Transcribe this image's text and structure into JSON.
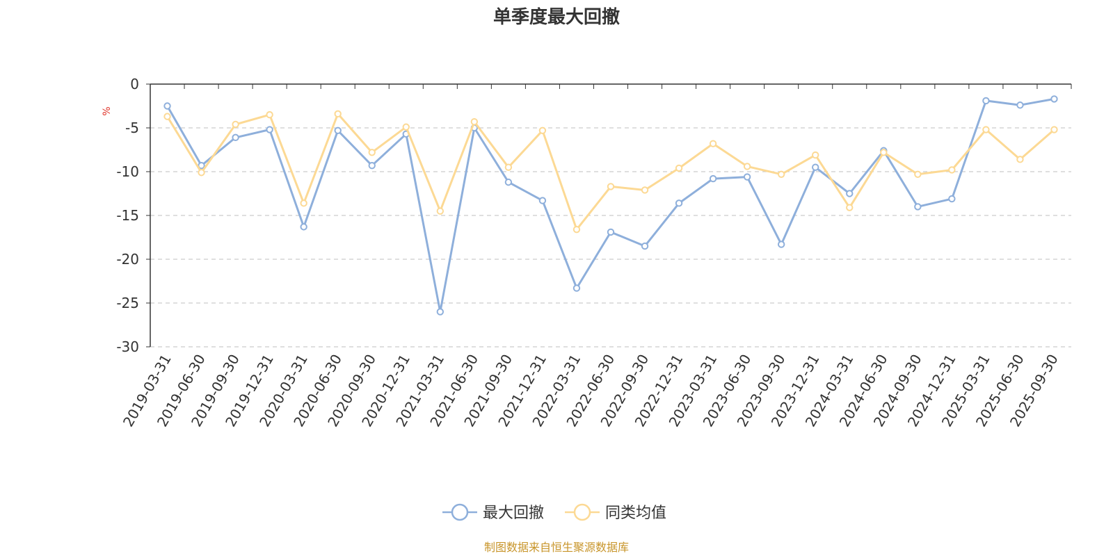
{
  "chart_data": {
    "type": "line",
    "title": "单季度最大回撤",
    "ylabel": "%",
    "ylim": [
      -30,
      0
    ],
    "yticks": [
      0,
      -5,
      -10,
      -15,
      -20,
      -25,
      -30
    ],
    "grid": true,
    "legend_position": "bottom-center",
    "categories": [
      "2019-03-31",
      "2019-06-30",
      "2019-09-30",
      "2019-12-31",
      "2020-03-31",
      "2020-06-30",
      "2020-09-30",
      "2020-12-31",
      "2021-03-31",
      "2021-06-30",
      "2021-09-30",
      "2021-12-31",
      "2022-03-31",
      "2022-06-30",
      "2022-09-30",
      "2022-12-31",
      "2023-03-31",
      "2023-06-30",
      "2023-09-30",
      "2023-12-31",
      "2024-03-31",
      "2024-06-30",
      "2024-09-30",
      "2024-12-31",
      "2025-03-31",
      "2025-06-30",
      "2025-09-30"
    ],
    "series": [
      {
        "name": "最大回撤",
        "color": "#8eafdb",
        "values": [
          -2.5,
          -9.3,
          -6.1,
          -5.2,
          -16.3,
          -5.3,
          -9.3,
          -5.7,
          -26.0,
          -5.0,
          -11.2,
          -13.3,
          -23.3,
          -16.9,
          -18.5,
          -13.6,
          -10.8,
          -10.6,
          -18.3,
          -9.5,
          -12.5,
          -7.6,
          -14.0,
          -13.1,
          -1.9,
          -2.4,
          -1.7
        ]
      },
      {
        "name": "同类均值",
        "color": "#fcd994",
        "values": [
          -3.7,
          -10.1,
          -4.6,
          -3.5,
          -13.6,
          -3.4,
          -7.8,
          -4.9,
          -14.5,
          -4.3,
          -9.5,
          -5.3,
          -16.6,
          -11.7,
          -12.1,
          -9.6,
          -6.8,
          -9.4,
          -10.3,
          -8.1,
          -14.1,
          -7.8,
          -10.3,
          -9.8,
          -5.2,
          -8.6,
          -5.2
        ]
      }
    ]
  },
  "source_text": "制图数据来自恒生聚源数据库"
}
